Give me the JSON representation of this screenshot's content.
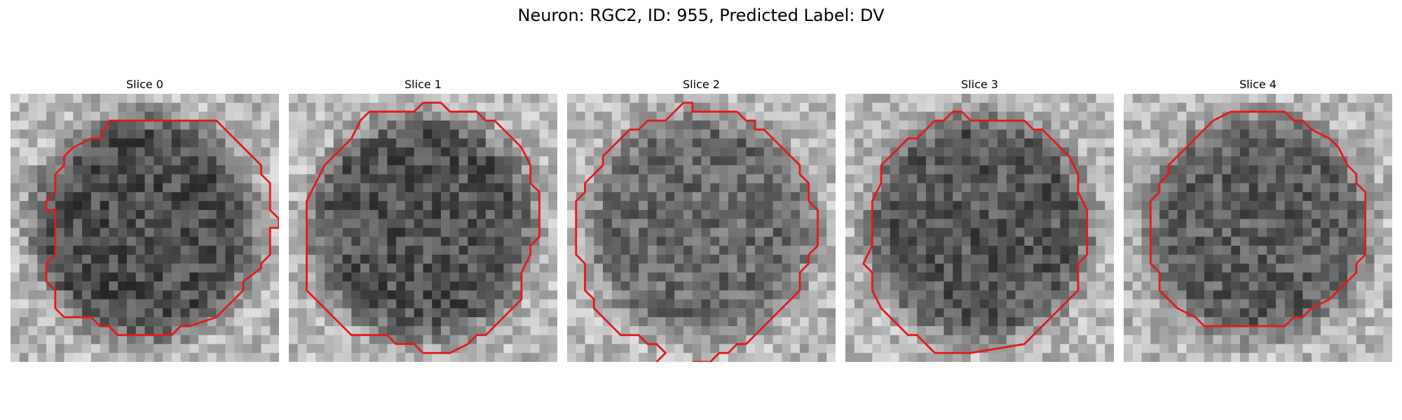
{
  "figure": {
    "title": "Neuron: RGC2, ID: 955, Predicted Label: DV"
  },
  "contour_color": "#e31a1c",
  "panels": [
    {
      "title": "Slice 0",
      "darkness": 0.7,
      "contour": [
        [
          11,
          3
        ],
        [
          23,
          3
        ],
        [
          27,
          7
        ],
        [
          28,
          8
        ],
        [
          28,
          9
        ],
        [
          29,
          10
        ],
        [
          29,
          13
        ],
        [
          30,
          14
        ],
        [
          30,
          15
        ],
        [
          29,
          15
        ],
        [
          29,
          18
        ],
        [
          28,
          19
        ],
        [
          28,
          19.5
        ],
        [
          26,
          21
        ],
        [
          26,
          22
        ],
        [
          25,
          23
        ],
        [
          23,
          25
        ],
        [
          20,
          26
        ],
        [
          19,
          26
        ],
        [
          18,
          27
        ],
        [
          15,
          27
        ],
        [
          12,
          27
        ],
        [
          11,
          26
        ],
        [
          10,
          26
        ],
        [
          9,
          25
        ],
        [
          6,
          25
        ],
        [
          5,
          24
        ],
        [
          5,
          23
        ],
        [
          5,
          22
        ],
        [
          4,
          21
        ],
        [
          4,
          19
        ],
        [
          5,
          18
        ],
        [
          5,
          13
        ],
        [
          4,
          13
        ],
        [
          4,
          12
        ],
        [
          5,
          11
        ],
        [
          5,
          9
        ],
        [
          6,
          8
        ],
        [
          6,
          7
        ],
        [
          7,
          6
        ],
        [
          9,
          5
        ],
        [
          10,
          5
        ],
        [
          11,
          3
        ]
      ]
    },
    {
      "title": "Slice 1",
      "darkness": 0.66,
      "contour": [
        [
          9,
          2
        ],
        [
          14,
          2
        ],
        [
          15,
          1
        ],
        [
          17,
          1
        ],
        [
          18,
          2
        ],
        [
          21,
          2
        ],
        [
          22,
          3
        ],
        [
          23,
          3
        ],
        [
          24,
          4
        ],
        [
          26,
          6
        ],
        [
          27,
          8
        ],
        [
          27,
          10
        ],
        [
          28,
          11
        ],
        [
          28,
          12
        ],
        [
          28,
          16
        ],
        [
          27,
          17
        ],
        [
          27,
          18
        ],
        [
          26,
          20
        ],
        [
          26,
          23
        ],
        [
          24,
          25
        ],
        [
          23,
          26
        ],
        [
          22,
          27
        ],
        [
          21,
          27
        ],
        [
          20,
          28
        ],
        [
          18,
          29
        ],
        [
          15,
          29
        ],
        [
          14,
          28
        ],
        [
          12,
          28
        ],
        [
          11,
          27
        ],
        [
          7,
          27
        ],
        [
          6,
          26
        ],
        [
          3,
          23
        ],
        [
          2,
          22
        ],
        [
          2,
          20
        ],
        [
          2,
          12
        ],
        [
          3,
          10
        ],
        [
          4,
          8
        ],
        [
          5,
          7
        ],
        [
          6,
          6
        ],
        [
          7,
          5
        ],
        [
          8,
          3
        ],
        [
          9,
          2
        ]
      ]
    },
    {
      "title": "Slice 2",
      "darkness": 0.45,
      "contour": [
        [
          12,
          2
        ],
        [
          13,
          1
        ],
        [
          14,
          1
        ],
        [
          14,
          2
        ],
        [
          19,
          2
        ],
        [
          20,
          3
        ],
        [
          21,
          3
        ],
        [
          21,
          4
        ],
        [
          22,
          4
        ],
        [
          25,
          7
        ],
        [
          26,
          8
        ],
        [
          26,
          9
        ],
        [
          27,
          10
        ],
        [
          27,
          11
        ],
        [
          27,
          12
        ],
        [
          28,
          13
        ],
        [
          28,
          17
        ],
        [
          27,
          18
        ],
        [
          27,
          19
        ],
        [
          26,
          20
        ],
        [
          26,
          22
        ],
        [
          24,
          24
        ],
        [
          23,
          25
        ],
        [
          22,
          26
        ],
        [
          21,
          27
        ],
        [
          20,
          28
        ],
        [
          19,
          28
        ],
        [
          18,
          29
        ],
        [
          17,
          29
        ],
        [
          16,
          30
        ],
        [
          15,
          30
        ],
        [
          14,
          30
        ]
      ]
    },
    {
      "title": "Slice 3",
      "darkness": 0.62,
      "contour": [
        [
          9,
          4
        ],
        [
          10,
          3
        ],
        [
          11,
          3
        ],
        [
          12,
          2
        ],
        [
          13,
          2
        ],
        [
          14,
          3
        ],
        [
          20,
          3
        ],
        [
          21,
          4
        ],
        [
          22,
          4
        ],
        [
          23,
          5
        ],
        [
          24,
          6
        ],
        [
          25,
          7
        ],
        [
          26,
          9
        ],
        [
          26,
          11
        ],
        [
          27,
          13
        ],
        [
          27,
          18
        ],
        [
          26,
          19
        ],
        [
          26,
          22
        ],
        [
          24,
          24
        ],
        [
          23,
          25
        ],
        [
          22,
          26
        ],
        [
          21,
          27
        ],
        [
          20,
          28
        ],
        [
          14,
          29
        ],
        [
          10,
          29
        ],
        [
          9,
          28
        ],
        [
          8,
          27
        ],
        [
          7,
          27
        ],
        [
          6,
          26
        ],
        [
          4,
          24
        ],
        [
          3,
          22
        ],
        [
          3,
          20
        ],
        [
          2,
          19
        ],
        [
          3,
          17
        ],
        [
          3,
          12
        ],
        [
          4,
          10
        ],
        [
          4,
          8
        ],
        [
          5,
          7
        ],
        [
          6,
          6
        ],
        [
          7,
          5
        ],
        [
          8,
          5
        ],
        [
          9,
          4
        ]
      ]
    },
    {
      "title": "Slice 4",
      "darkness": 0.56,
      "contour": [
        [
          10,
          3
        ],
        [
          12,
          2
        ],
        [
          16,
          2
        ],
        [
          18,
          2
        ],
        [
          19,
          3
        ],
        [
          20,
          3
        ],
        [
          21,
          4
        ],
        [
          23,
          5
        ],
        [
          24,
          6
        ],
        [
          25,
          8
        ],
        [
          26,
          9
        ],
        [
          26,
          10
        ],
        [
          27,
          11
        ],
        [
          27,
          18
        ],
        [
          26,
          19
        ],
        [
          26,
          20
        ],
        [
          25,
          21
        ],
        [
          24,
          22
        ],
        [
          23,
          23
        ],
        [
          21,
          24
        ],
        [
          20,
          25
        ],
        [
          19,
          25
        ],
        [
          18,
          26
        ],
        [
          13,
          26
        ],
        [
          11,
          26
        ],
        [
          9,
          26
        ],
        [
          8,
          25
        ],
        [
          6,
          24
        ],
        [
          5,
          23
        ],
        [
          4,
          22
        ],
        [
          4,
          20
        ],
        [
          3,
          19
        ],
        [
          3,
          12
        ],
        [
          4,
          11
        ],
        [
          4,
          10
        ],
        [
          5,
          9
        ],
        [
          5,
          8
        ],
        [
          6,
          7
        ],
        [
          7,
          6
        ],
        [
          8,
          5
        ],
        [
          9,
          4
        ],
        [
          10,
          3
        ]
      ]
    }
  ],
  "slice2_tail": [
    [
      10,
      30
    ],
    [
      11,
      29
    ],
    [
      10,
      28
    ],
    [
      9,
      28
    ],
    [
      8,
      27
    ],
    [
      6,
      27
    ],
    [
      5,
      26
    ],
    [
      4,
      25
    ],
    [
      3,
      24
    ],
    [
      3,
      23
    ],
    [
      2,
      22
    ],
    [
      2,
      19
    ],
    [
      1,
      18
    ],
    [
      1,
      12
    ],
    [
      2,
      11
    ],
    [
      2,
      10
    ],
    [
      3,
      9
    ],
    [
      4,
      8
    ],
    [
      4,
      7
    ],
    [
      6,
      5
    ],
    [
      7,
      4
    ],
    [
      8,
      4
    ],
    [
      9,
      3
    ],
    [
      10,
      3
    ],
    [
      11,
      3
    ],
    [
      12,
      2
    ]
  ]
}
